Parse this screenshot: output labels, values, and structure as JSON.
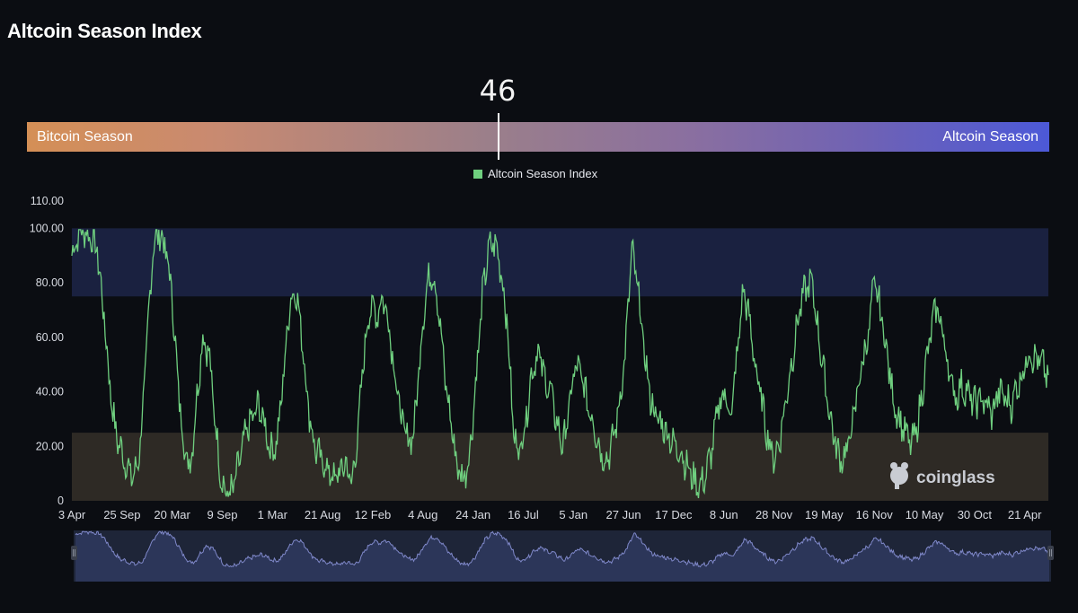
{
  "page": {
    "title": "Altcoin Season Index"
  },
  "indicator": {
    "value": "46",
    "left_label": "Bitcoin Season",
    "right_label": "Altcoin Season",
    "marker_fraction": 0.46
  },
  "legend": {
    "label": "Altcoin Season Index",
    "color": "#6fcf7f"
  },
  "watermark": {
    "text": "coinglass"
  },
  "colors": {
    "line": "#6fcf7f",
    "altcoin_zone": "#1a2140",
    "bitcoin_zone": "#2e2a25",
    "navigator_fill": "#2c3659",
    "navigator_line": "#7f88c9"
  },
  "chart_data": {
    "type": "line",
    "title": "",
    "xlabel": "",
    "ylabel": "",
    "ylim": [
      0,
      110
    ],
    "y_ticks": [
      "0",
      "20.00",
      "40.00",
      "60.00",
      "80.00",
      "100.00",
      "110.00"
    ],
    "x_ticks": [
      "3 Apr",
      "25 Sep",
      "20 Mar",
      "9 Sep",
      "1 Mar",
      "21 Aug",
      "12 Feb",
      "4 Aug",
      "24 Jan",
      "16 Jul",
      "5 Jan",
      "27 Jun",
      "17 Dec",
      "8 Jun",
      "28 Nov",
      "19 May",
      "16 Nov",
      "10 May",
      "30 Oct",
      "21 Apr"
    ],
    "bands": [
      {
        "name": "Altcoin Season",
        "from": 75,
        "to": 100
      },
      {
        "name": "Bitcoin Season",
        "from": 0,
        "to": 25
      }
    ],
    "series": [
      {
        "name": "Altcoin Season Index",
        "values": [
          90,
          98,
          99,
          97,
          93,
          72,
          45,
          25,
          18,
          12,
          8,
          20,
          55,
          92,
          99,
          93,
          78,
          45,
          20,
          12,
          35,
          60,
          55,
          30,
          8,
          2,
          5,
          15,
          25,
          30,
          35,
          28,
          18,
          22,
          45,
          72,
          78,
          60,
          35,
          20,
          15,
          12,
          8,
          10,
          14,
          6,
          25,
          55,
          72,
          68,
          75,
          65,
          45,
          30,
          22,
          25,
          55,
          78,
          85,
          70,
          45,
          28,
          12,
          8,
          18,
          45,
          75,
          92,
          95,
          85,
          65,
          25,
          18,
          30,
          48,
          55,
          45,
          40,
          28,
          20,
          35,
          50,
          45,
          35,
          28,
          18,
          15,
          22,
          35,
          55,
          92,
          78,
          55,
          38,
          30,
          28,
          24,
          20,
          18,
          12,
          8,
          5,
          10,
          20,
          35,
          40,
          30,
          55,
          78,
          65,
          48,
          35,
          22,
          15,
          25,
          40,
          55,
          70,
          78,
          80,
          62,
          45,
          30,
          18,
          15,
          22,
          35,
          50,
          60,
          80,
          70,
          55,
          38,
          30,
          25,
          20,
          28,
          45,
          60,
          72,
          62,
          48,
          38,
          42,
          40,
          35,
          38,
          35,
          32,
          40,
          38,
          35,
          42,
          48,
          55,
          52,
          50,
          45
        ]
      }
    ]
  }
}
